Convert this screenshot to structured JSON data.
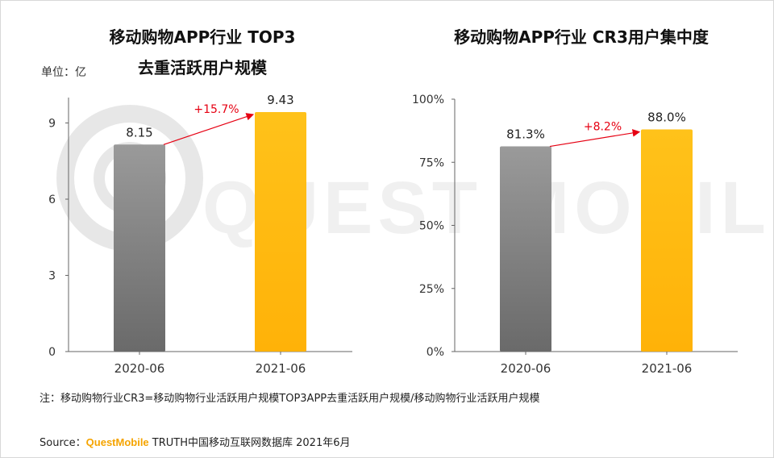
{
  "left_chart": {
    "title_line1": "移动购物APP行业 TOP3",
    "title_line2": "去重活跃用户规模",
    "unit": "单位：亿"
  },
  "right_chart": {
    "title": "移动购物APP行业 CR3用户集中度"
  },
  "note": "注：移动购物行业CR3=移动购物行业活跃用户规模TOP3APP去重活跃用户规模/移动购物行业活跃用户规模",
  "source": {
    "prefix": "Source：",
    "brand": "QuestMobile",
    "rest": " TRUTH中国移动互联网数据库 2021年6月"
  },
  "watermark": "QUEST MOBILE",
  "colors": {
    "bar_2020": "#7f7f7f",
    "bar_2021": "#ffb90f",
    "growth": "#e60012"
  },
  "chart_data": [
    {
      "type": "bar",
      "categories": [
        "2020-06",
        "2021-06"
      ],
      "values": [
        8.15,
        9.43
      ],
      "data_labels": [
        "8.15",
        "9.43"
      ],
      "growth_label": "+15.7%",
      "ylim": [
        0,
        10
      ],
      "yticks": [
        0,
        3,
        6,
        9
      ],
      "ytick_labels": [
        "0",
        "3",
        "6",
        "9"
      ],
      "grid": false
    },
    {
      "type": "bar",
      "categories": [
        "2020-06",
        "2021-06"
      ],
      "values": [
        81.3,
        88.0
      ],
      "data_labels": [
        "81.3%",
        "88.0%"
      ],
      "growth_label": "+8.2%",
      "ylim": [
        0,
        100
      ],
      "yticks": [
        0,
        25,
        50,
        75,
        100
      ],
      "ytick_labels": [
        "0%",
        "25%",
        "50%",
        "75%",
        "100%"
      ],
      "grid": false
    }
  ]
}
